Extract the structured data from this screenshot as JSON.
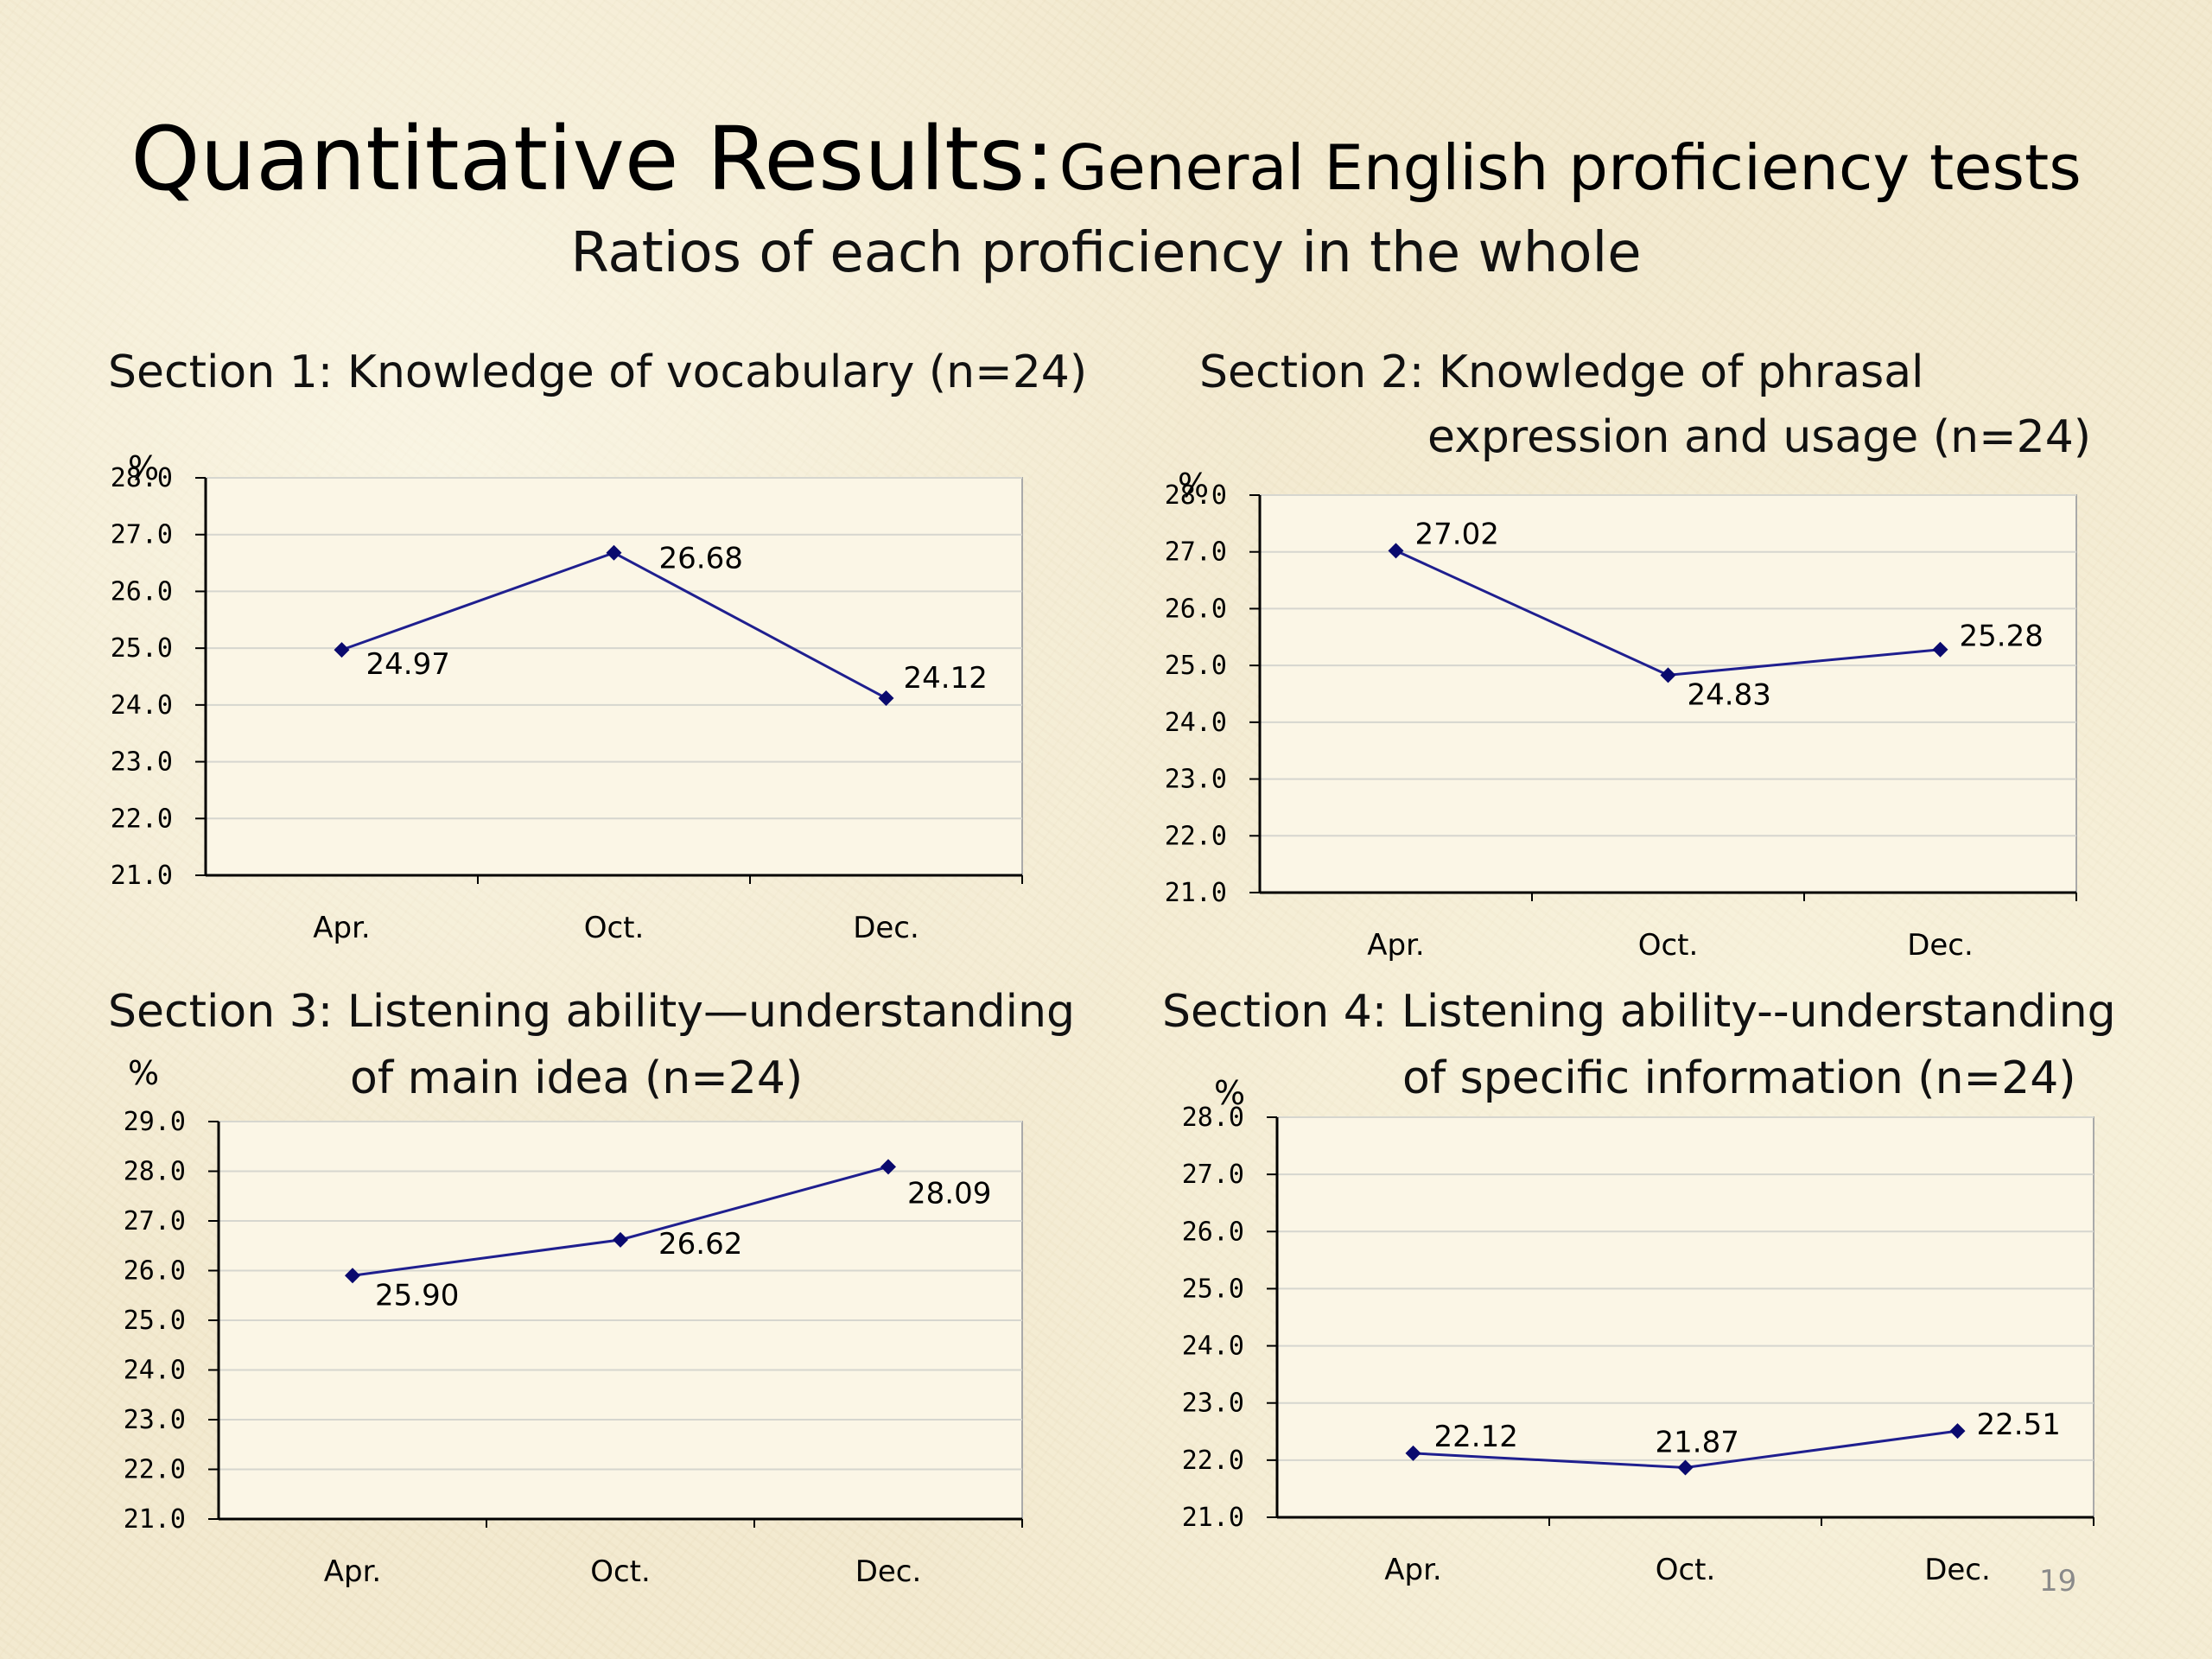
{
  "slide": {
    "title_main": "Quantitative Results:",
    "title_sub": "General English proficiency tests",
    "subtitle": "Ratios of each proficiency in the whole",
    "page_number": "19"
  },
  "colors": {
    "line": "#1f1f8f",
    "marker": "#0a0a6e",
    "gridline": "#d6d6cf",
    "plot_background": "#fbf6e6"
  },
  "chart_data": [
    {
      "type": "line",
      "title_lines": [
        "Section 1: Knowledge of vocabulary (n=24)"
      ],
      "ylabel": "%",
      "categories": [
        "Apr.",
        "Oct.",
        "Dec."
      ],
      "series": [
        {
          "values": [
            24.97,
            26.68,
            24.12
          ]
        }
      ],
      "data_labels": [
        "24.97",
        "26.68",
        "24.12"
      ],
      "ylim": [
        21.0,
        28.0
      ],
      "yticks": [
        "21.0",
        "22.0",
        "23.0",
        "24.0",
        "25.0",
        "26.0",
        "27.0",
        "28.0"
      ],
      "grid": true,
      "legend": "none"
    },
    {
      "type": "line",
      "title_lines": [
        "Section 2: Knowledge of phrasal",
        "expression and usage (n=24)"
      ],
      "ylabel": "%",
      "categories": [
        "Apr.",
        "Oct.",
        "Dec."
      ],
      "series": [
        {
          "values": [
            27.02,
            24.83,
            25.28
          ]
        }
      ],
      "data_labels": [
        "27.02",
        "24.83",
        "25.28"
      ],
      "ylim": [
        21.0,
        28.0
      ],
      "yticks": [
        "21.0",
        "22.0",
        "23.0",
        "24.0",
        "25.0",
        "26.0",
        "27.0",
        "28.0"
      ],
      "grid": true,
      "legend": "none"
    },
    {
      "type": "line",
      "title_lines": [
        "Section 3: Listening ability—understanding",
        "of main idea (n=24)"
      ],
      "ylabel": "%",
      "categories": [
        "Apr.",
        "Oct.",
        "Dec."
      ],
      "series": [
        {
          "values": [
            25.9,
            26.62,
            28.09
          ]
        }
      ],
      "data_labels": [
        "25.90",
        "26.62",
        "28.09"
      ],
      "ylim": [
        21.0,
        29.0
      ],
      "yticks": [
        "21.0",
        "22.0",
        "23.0",
        "24.0",
        "25.0",
        "26.0",
        "27.0",
        "28.0",
        "29.0"
      ],
      "grid": true,
      "legend": "none"
    },
    {
      "type": "line",
      "title_lines": [
        "Section 4: Listening ability--understanding",
        "of specific information (n=24)"
      ],
      "ylabel": "%",
      "categories": [
        "Apr.",
        "Oct.",
        "Dec."
      ],
      "series": [
        {
          "values": [
            22.12,
            21.87,
            22.51
          ]
        }
      ],
      "data_labels": [
        "22.12",
        "21.87",
        "22.51"
      ],
      "ylim": [
        21.0,
        28.0
      ],
      "yticks": [
        "21.0",
        "22.0",
        "23.0",
        "24.0",
        "25.0",
        "26.0",
        "27.0",
        "28.0"
      ],
      "grid": true,
      "legend": "none"
    }
  ]
}
